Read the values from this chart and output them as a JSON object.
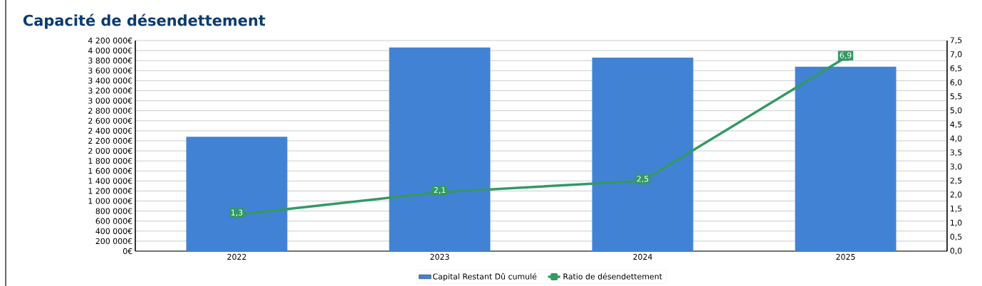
{
  "chart_data": {
    "type": "bar",
    "title": "Capacité de désendettement",
    "categories": [
      "2022",
      "2023",
      "2024",
      "2025"
    ],
    "series": [
      {
        "name": "Capital Restant Dû cumulé",
        "color": "#4282d4",
        "values": [
          2280000,
          4060000,
          3860000,
          3680000
        ]
      },
      {
        "name": "Ratio de désendettement",
        "type": "line",
        "axis": "y2",
        "color": "#339966",
        "values": [
          1.3,
          2.1,
          2.5,
          6.9
        ],
        "value_labels": [
          "1,3",
          "2,1",
          "2,5",
          "6,9"
        ]
      }
    ],
    "ylim": [
      0,
      4200000
    ],
    "yticks": [
      {
        "value": 0,
        "label": "0€"
      },
      {
        "value": 200000,
        "label": "200 000€"
      },
      {
        "value": 400000,
        "label": "400 000€"
      },
      {
        "value": 600000,
        "label": "600 000€"
      },
      {
        "value": 800000,
        "label": "800 000€"
      },
      {
        "value": 1000000,
        "label": "1 000 000€"
      },
      {
        "value": 1200000,
        "label": "1 200 000€"
      },
      {
        "value": 1400000,
        "label": "1 400 000€"
      },
      {
        "value": 1600000,
        "label": "1 600 000€"
      },
      {
        "value": 1800000,
        "label": "1 800 000€"
      },
      {
        "value": 2000000,
        "label": "2 000 000€"
      },
      {
        "value": 2200000,
        "label": "2 200 000€"
      },
      {
        "value": 2400000,
        "label": "2 400 000€"
      },
      {
        "value": 2600000,
        "label": "2 600 000€"
      },
      {
        "value": 2800000,
        "label": "2 800 000€"
      },
      {
        "value": 3000000,
        "label": "3 000 000€"
      },
      {
        "value": 3200000,
        "label": "3 200 000€"
      },
      {
        "value": 3400000,
        "label": "3 400 000€"
      },
      {
        "value": 3600000,
        "label": "3 600 000€"
      },
      {
        "value": 3800000,
        "label": "3 800 000€"
      },
      {
        "value": 4000000,
        "label": "4 000 000€"
      },
      {
        "value": 4200000,
        "label": "4 200 000€"
      }
    ],
    "y2lim": [
      0,
      7.5
    ],
    "y2ticks": [
      {
        "value": 0,
        "label": "0,0"
      },
      {
        "value": 0.5,
        "label": "0,5"
      },
      {
        "value": 1,
        "label": "1,0"
      },
      {
        "value": 1.5,
        "label": "1,5"
      },
      {
        "value": 2,
        "label": "2,0"
      },
      {
        "value": 2.5,
        "label": "2,5"
      },
      {
        "value": 3,
        "label": "3,0"
      },
      {
        "value": 3.5,
        "label": "3,5"
      },
      {
        "value": 4,
        "label": "4,0"
      },
      {
        "value": 4.5,
        "label": "4,5"
      },
      {
        "value": 5,
        "label": "5,0"
      },
      {
        "value": 5.5,
        "label": "5,5"
      },
      {
        "value": 6,
        "label": "6,0"
      },
      {
        "value": 6.5,
        "label": "6,5"
      },
      {
        "value": 7,
        "label": "7,0"
      },
      {
        "value": 7.5,
        "label": "7,5"
      }
    ],
    "grid": "y",
    "legend": "bottom",
    "marker": "square",
    "line_style": "solid"
  }
}
